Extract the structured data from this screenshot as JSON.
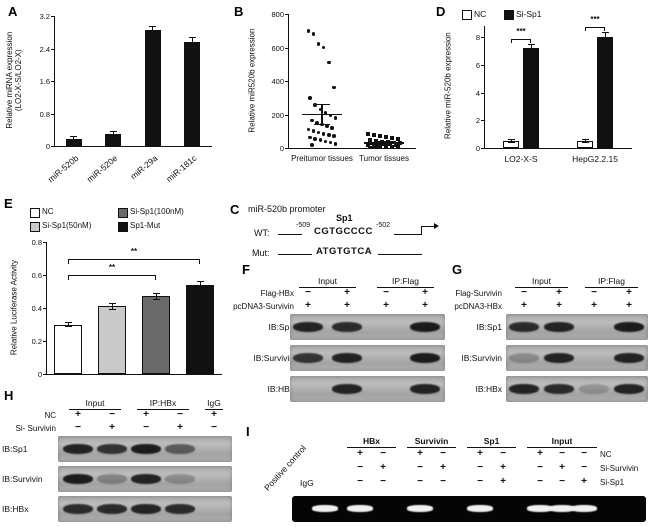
{
  "panels": {
    "A": {
      "letter": "A",
      "ylabel": "Relative miRNA expression",
      "ylabel2": "(LO2-X-S/LO2-X)"
    },
    "B": {
      "letter": "B"
    },
    "C": {
      "letter": "C",
      "title": "miR-520b promoter",
      "wt_label": "WT:",
      "mut_label": "Mut:",
      "pos_left": "-509",
      "pos_right": "-502",
      "tf_label": "Sp1",
      "wt_seq": "CGTGCCCC",
      "mut_seq": "ATGTGTCA"
    },
    "D": {
      "letter": "D"
    },
    "E": {
      "letter": "E",
      "legend": [
        {
          "label": "NC",
          "color": "#ffffff"
        },
        {
          "label": "Si-Sp1(50nM)",
          "color": "#c9c9c9"
        },
        {
          "label": "Si-Sp1(100nM)",
          "color": "#6a6a6a"
        },
        {
          "label": "Sp1-Mut",
          "color": "#111111"
        }
      ]
    },
    "F": {
      "letter": "F",
      "headers": [
        {
          "label": "Input",
          "lanes": [
            0,
            1
          ]
        },
        {
          "label": "IP:Flag",
          "lanes": [
            2,
            3
          ]
        }
      ],
      "condition_rows": [
        {
          "label": "Flag-HBx",
          "symbols": [
            "−",
            "+",
            "−",
            "+"
          ]
        },
        {
          "label": "pcDNA3-Survivin",
          "symbols": [
            "+",
            "+",
            "+",
            "+"
          ]
        }
      ],
      "strips": [
        {
          "label": "IB:Sp1",
          "bands": [
            0.9,
            0.85,
            0,
            0.95
          ]
        },
        {
          "label": "IB:Survivin",
          "bands": [
            0.8,
            0.9,
            0,
            0.95
          ]
        },
        {
          "label": "IB:HBx",
          "bands": [
            0,
            0.9,
            0,
            0.9
          ]
        }
      ]
    },
    "G": {
      "letter": "G",
      "headers": [
        {
          "label": "Input",
          "lanes": [
            0,
            1
          ]
        },
        {
          "label": "IP:Flag",
          "lanes": [
            2,
            3
          ]
        }
      ],
      "condition_rows": [
        {
          "label": "Flag-Survivin",
          "symbols": [
            "−",
            "+",
            "−",
            "+"
          ]
        },
        {
          "label": "pcDNA3-HBx",
          "symbols": [
            "+",
            "+",
            "+",
            "+"
          ]
        }
      ],
      "strips": [
        {
          "label": "IB:Sp1",
          "bands": [
            0.85,
            0.9,
            0,
            0.95
          ]
        },
        {
          "label": "IB:Survivin",
          "bands": [
            0.25,
            0.9,
            0,
            0.9
          ]
        },
        {
          "label": "IB:HBx",
          "bands": [
            0.9,
            0.85,
            0.2,
            0.9
          ]
        }
      ]
    },
    "H": {
      "letter": "H",
      "headers": [
        {
          "label": "Input",
          "lanes": [
            0,
            1
          ]
        },
        {
          "label": "IP:HBx",
          "lanes": [
            2,
            3
          ]
        },
        {
          "label": "IgG",
          "lanes": [
            4
          ]
        }
      ],
      "condition_rows": [
        {
          "label": "NC",
          "symbols": [
            "+",
            "−",
            "+",
            "−",
            "+"
          ]
        },
        {
          "label": "Si- Survivin",
          "symbols": [
            "−",
            "+",
            "−",
            "+",
            "−"
          ]
        }
      ],
      "strips": [
        {
          "label": "IB:Sp1",
          "bands": [
            0.9,
            0.8,
            0.95,
            0.55,
            0
          ]
        },
        {
          "label": "IB:Survivin",
          "bands": [
            0.95,
            0.3,
            0.9,
            0.25,
            0
          ]
        },
        {
          "label": "IB:HBx",
          "bands": [
            0.85,
            0.85,
            0.9,
            0.85,
            0
          ]
        }
      ]
    },
    "I": {
      "letter": "I",
      "rotated_label": "Positive control",
      "igg_label": "IgG",
      "group_headers": [
        "HBx",
        "Survivin",
        "Sp1",
        "Input"
      ],
      "rows": [
        {
          "symbols": [
            "+",
            "−",
            "+",
            "−",
            "+",
            "−",
            "+",
            "−",
            "−"
          ],
          "label": "NC"
        },
        {
          "symbols": [
            "−",
            "+",
            "−",
            "+",
            "−",
            "+",
            "−",
            "+",
            "−"
          ],
          "label": "Si-Survivin"
        },
        {
          "symbols": [
            "−",
            "−",
            "−",
            "−",
            "−",
            "+",
            "−",
            "−",
            "+"
          ],
          "label": "Si-Sp1"
        }
      ],
      "gel_bands": [
        1,
        1,
        0,
        1,
        0,
        1,
        0,
        1,
        1,
        1
      ]
    }
  },
  "chart_data": [
    {
      "id": "A",
      "type": "bar",
      "categories": [
        "miR-520b",
        "miR-520e",
        "miR-29a",
        "miR-181c"
      ],
      "values": [
        0.18,
        0.3,
        2.85,
        2.55
      ],
      "errors": [
        0.05,
        0.06,
        0.1,
        0.12
      ],
      "ylabel": "Relative miRNA expression (LO2-X-S/LO2-X)",
      "ylim": [
        0,
        3.2
      ],
      "yticks": [
        0,
        0.8,
        1.6,
        2.4,
        3.2
      ],
      "bar_color": "#111111"
    },
    {
      "id": "B",
      "type": "scatter",
      "categories": [
        "Preitumor tissues",
        "Tumor tissues"
      ],
      "ylabel": "Relative miR520b expression",
      "ylim": [
        0,
        800
      ],
      "yticks": [
        0,
        200,
        400,
        600,
        800
      ],
      "series": [
        {
          "name": "Preitumor tissues",
          "marker": "circle",
          "mean": 200,
          "sem": 60,
          "values": [
            700,
            680,
            620,
            600,
            510,
            360,
            300,
            255,
            230,
            210,
            195,
            180,
            165,
            150,
            140,
            130,
            120,
            110,
            100,
            92,
            85,
            78,
            70,
            62,
            55,
            48,
            40,
            32,
            25,
            18
          ]
        },
        {
          "name": "Tumor tissues",
          "marker": "square",
          "mean": 30,
          "sem": 10,
          "values": [
            85,
            78,
            70,
            64,
            58,
            53,
            48,
            44,
            40,
            37,
            34,
            31,
            28,
            25,
            22,
            20,
            17,
            15,
            12,
            10,
            8,
            6,
            5,
            4,
            3
          ]
        }
      ]
    },
    {
      "id": "D",
      "type": "bar",
      "categories": [
        "LO2-X-S",
        "HepG2.2.15"
      ],
      "series": [
        {
          "name": "NC",
          "color": "#ffffff",
          "values": [
            0.5,
            0.5
          ],
          "errors": [
            0.12,
            0.12
          ]
        },
        {
          "name": "Si-Sp1",
          "color": "#111111",
          "values": [
            7.2,
            8.0
          ],
          "errors": [
            0.25,
            0.3
          ]
        }
      ],
      "significance": [
        "***",
        "***"
      ],
      "ylabel": "Relative miR-520b expression",
      "ylim": [
        0,
        8.8
      ],
      "yticks": [
        0,
        2,
        4,
        6,
        8
      ]
    },
    {
      "id": "E",
      "type": "bar",
      "categories": [
        "NC",
        "Si-Sp1(50nM)",
        "Si-Sp1(100nM)",
        "Sp1-Mut"
      ],
      "values": [
        0.3,
        0.41,
        0.47,
        0.54
      ],
      "errors": [
        0.015,
        0.02,
        0.02,
        0.02
      ],
      "colors": [
        "#ffffff",
        "#c9c9c9",
        "#6a6a6a",
        "#111111"
      ],
      "sig_brackets": [
        {
          "from": 0,
          "to": 2,
          "label": "**",
          "y": 0.6
        },
        {
          "from": 0,
          "to": 3,
          "label": "**",
          "y": 0.7
        }
      ],
      "ylabel": "Relative Luciferase Activity",
      "ylim": [
        0,
        0.8
      ],
      "yticks": [
        0,
        0.2,
        0.4,
        0.6,
        0.8
      ]
    }
  ]
}
